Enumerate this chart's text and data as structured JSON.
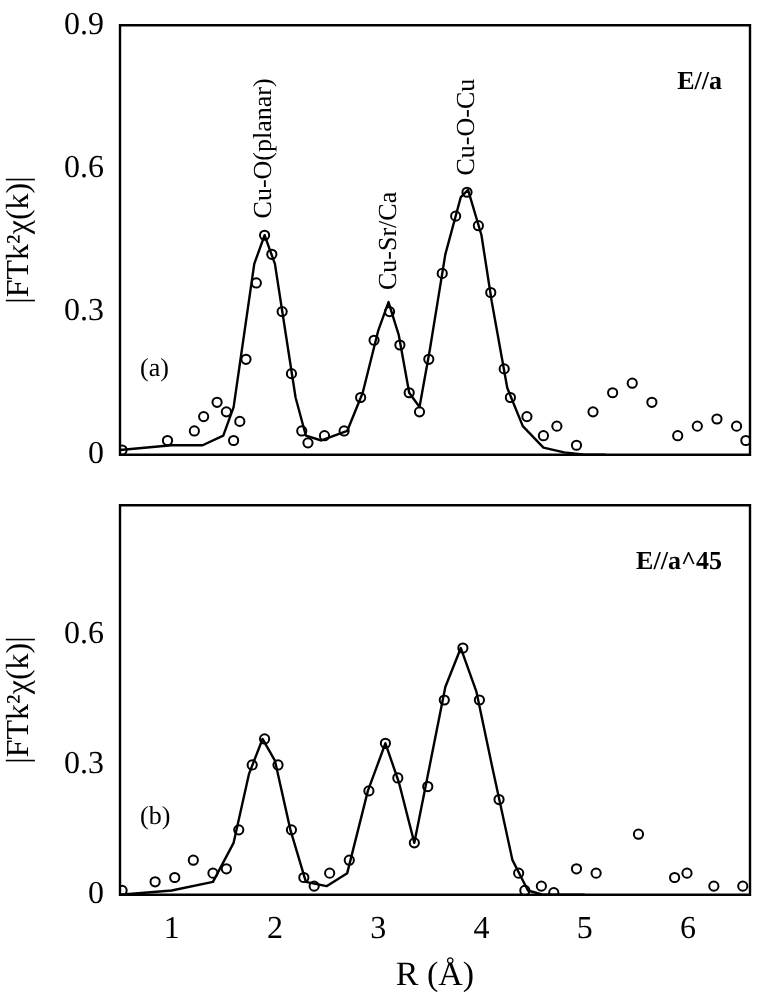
{
  "chart_data": [
    {
      "type": "scatter",
      "ylabel": "|FTk²χ(k)|",
      "xlim": [
        0.5,
        6.6
      ],
      "xticks": [
        1,
        2,
        3,
        4,
        5,
        6
      ],
      "ylim": [
        0,
        0.9
      ],
      "yticks": [
        0,
        0.3,
        0.6,
        0.9
      ],
      "tick_labels": "y",
      "grid": false,
      "legend": false,
      "annotations": [
        "E//a",
        "(a)",
        {
          "text": "Cu-O(planar)",
          "x": 1.9,
          "y": 0.47
        },
        {
          "text": "Cu-Sr/Ca",
          "x": 3.11,
          "y": 0.32
        },
        {
          "text": "Cu-O-Cu",
          "x": 3.86,
          "y": 0.56
        }
      ],
      "series": [
        {
          "type": "scatter",
          "marker": "circle",
          "color": "#000000",
          "x": [
            0.52,
            0.96,
            1.22,
            1.31,
            1.44,
            1.53,
            1.6,
            1.66,
            1.72,
            1.82,
            1.9,
            1.97,
            2.07,
            2.16,
            2.26,
            2.32,
            2.48,
            2.67,
            2.83,
            2.96,
            3.11,
            3.21,
            3.3,
            3.4,
            3.49,
            3.62,
            3.75,
            3.86,
            3.97,
            4.09,
            4.22,
            4.28,
            4.44,
            4.6,
            4.73,
            4.92,
            5.08,
            5.27,
            5.46,
            5.65,
            5.9,
            6.09,
            6.28,
            6.47,
            6.56
          ],
          "values": [
            0.01,
            0.03,
            0.05,
            0.08,
            0.11,
            0.09,
            0.03,
            0.07,
            0.2,
            0.36,
            0.46,
            0.42,
            0.3,
            0.17,
            0.05,
            0.025,
            0.04,
            0.05,
            0.12,
            0.24,
            0.3,
            0.23,
            0.13,
            0.09,
            0.2,
            0.38,
            0.5,
            0.55,
            0.48,
            0.34,
            0.18,
            0.12,
            0.08,
            0.04,
            0.06,
            0.02,
            0.09,
            0.13,
            0.15,
            0.11,
            0.04,
            0.06,
            0.075,
            0.06,
            0.03
          ]
        },
        {
          "type": "line",
          "marker": "none",
          "line_style": "solid",
          "color": "#000000",
          "x": [
            0.5,
            1.0,
            1.3,
            1.5,
            1.6,
            1.7,
            1.8,
            1.9,
            2.0,
            2.1,
            2.2,
            2.3,
            2.45,
            2.7,
            2.85,
            3.0,
            3.1,
            3.2,
            3.3,
            3.4,
            3.5,
            3.65,
            3.8,
            3.87,
            4.0,
            4.1,
            4.25,
            4.4,
            4.6,
            4.8,
            5.0,
            5.2
          ],
          "values": [
            0.01,
            0.02,
            0.02,
            0.04,
            0.1,
            0.25,
            0.4,
            0.46,
            0.4,
            0.26,
            0.12,
            0.04,
            0.03,
            0.05,
            0.13,
            0.26,
            0.32,
            0.25,
            0.13,
            0.1,
            0.22,
            0.42,
            0.54,
            0.555,
            0.46,
            0.32,
            0.14,
            0.06,
            0.015,
            0.005,
            0,
            0
          ]
        }
      ]
    },
    {
      "type": "scatter",
      "xlabel": "R (Å)",
      "ylabel": "|FTk²χ(k)|",
      "xlim": [
        0.5,
        6.6
      ],
      "xticks": [
        1,
        2,
        3,
        4,
        5,
        6
      ],
      "ylim": [
        0,
        0.9
      ],
      "yticks": [
        0,
        0.3,
        0.6
      ],
      "grid": false,
      "legend": false,
      "annotations": [
        "E//a^45",
        "(b)"
      ],
      "series": [
        {
          "type": "scatter",
          "marker": "circle",
          "color": "#000000",
          "x": [
            0.52,
            0.84,
            1.03,
            1.21,
            1.4,
            1.53,
            1.65,
            1.78,
            1.9,
            2.03,
            2.16,
            2.28,
            2.38,
            2.53,
            2.72,
            2.91,
            3.07,
            3.19,
            3.35,
            3.48,
            3.64,
            3.82,
            3.98,
            4.17,
            4.36,
            4.42,
            4.58,
            4.7,
            4.92,
            5.11,
            5.52,
            5.87,
            5.99,
            6.25,
            6.53
          ],
          "values": [
            0.01,
            0.03,
            0.04,
            0.08,
            0.05,
            0.06,
            0.15,
            0.3,
            0.36,
            0.3,
            0.15,
            0.04,
            0.02,
            0.05,
            0.08,
            0.24,
            0.35,
            0.27,
            0.12,
            0.25,
            0.45,
            0.57,
            0.45,
            0.22,
            0.05,
            0.01,
            0.02,
            0.005,
            0.06,
            0.05,
            0.14,
            0.04,
            0.05,
            0.02,
            0.02
          ]
        },
        {
          "type": "line",
          "marker": "none",
          "line_style": "solid",
          "color": "#000000",
          "x": [
            0.5,
            1.0,
            1.4,
            1.6,
            1.75,
            1.88,
            2.0,
            2.15,
            2.3,
            2.5,
            2.7,
            2.9,
            3.07,
            3.2,
            3.35,
            3.5,
            3.65,
            3.8,
            3.95,
            4.1,
            4.3,
            4.45,
            4.6,
            5.0
          ],
          "values": [
            0,
            0.01,
            0.03,
            0.12,
            0.28,
            0.36,
            0.31,
            0.15,
            0.03,
            0.02,
            0.05,
            0.24,
            0.35,
            0.26,
            0.12,
            0.3,
            0.48,
            0.57,
            0.47,
            0.3,
            0.08,
            0.01,
            0,
            0
          ]
        }
      ]
    }
  ]
}
